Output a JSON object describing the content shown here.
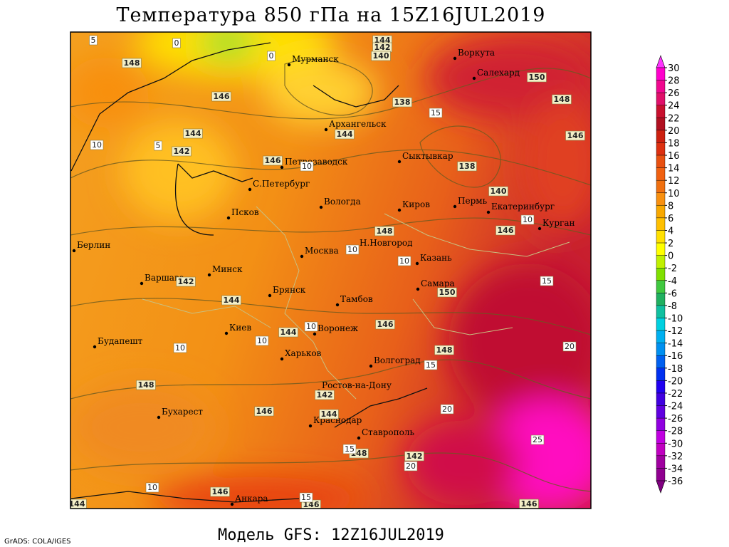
{
  "title": "Температура 850 гПа на 15Z16JUL2019",
  "footer": "Модель GFS: 12Z16JUL2019",
  "credit": "GrADS: COLA/IGES",
  "cities": [
    "Мурманск",
    "Воркута",
    "Салехард",
    "Архангельск",
    "Сыктывкар",
    "Петрозаводск",
    "С.Петербург",
    "Вологда",
    "Киров",
    "Пермь",
    "Екатеринбург",
    "Курган",
    "Псков",
    "Н.Новгород",
    "Берлин",
    "Москва",
    "Казань",
    "Варшава",
    "Минск",
    "Самара",
    "Брянск",
    "Тамбов",
    "Киев",
    "Воронеж",
    "Будапешт",
    "Харьков",
    "Волгоград",
    "Ростов-на-Дону",
    "Бухарест",
    "Краснодар",
    "Ставрополь",
    "Анкара"
  ],
  "height_labels": [
    148,
    146,
    144,
    142,
    146,
    144,
    138,
    144,
    142,
    140,
    150,
    148,
    146,
    138,
    140,
    146,
    148,
    150,
    146,
    148,
    144,
    144,
    142,
    142,
    144,
    148,
    146,
    148,
    146,
    146,
    146,
    144,
    142
  ],
  "temperature_labels": [
    5,
    0,
    0,
    5,
    10,
    10,
    15,
    10,
    10,
    10,
    15,
    10,
    10,
    10,
    20,
    20,
    15,
    25,
    15,
    10,
    15,
    20
  ],
  "colorbar": {
    "ticks": [
      30,
      28,
      26,
      24,
      22,
      20,
      18,
      16,
      14,
      12,
      10,
      8,
      6,
      4,
      2,
      0,
      -2,
      -4,
      -6,
      -8,
      -10,
      -12,
      -14,
      -16,
      -18,
      -20,
      -22,
      -24,
      -26,
      -28,
      -30,
      -32,
      -34,
      -36
    ],
    "colors": [
      "#ff33ff",
      "#ff00cc",
      "#f0088f",
      "#e0106a",
      "#c8102e",
      "#b01020",
      "#cc2010",
      "#dd3010",
      "#e85010",
      "#f06010",
      "#f07010",
      "#f89010",
      "#f8a800",
      "#ffc000",
      "#ffe000",
      "#ffff00",
      "#c0f000",
      "#80e000",
      "#40c840",
      "#20b060",
      "#10c0a0",
      "#00d0e0",
      "#00b0f0",
      "#0090f0",
      "#0060f0",
      "#0030f0",
      "#2000f0",
      "#4000e0",
      "#6000e0",
      "#9000e0",
      "#c000e0",
      "#c000c0",
      "#a000a0",
      "#900090",
      "#800080"
    ]
  }
}
